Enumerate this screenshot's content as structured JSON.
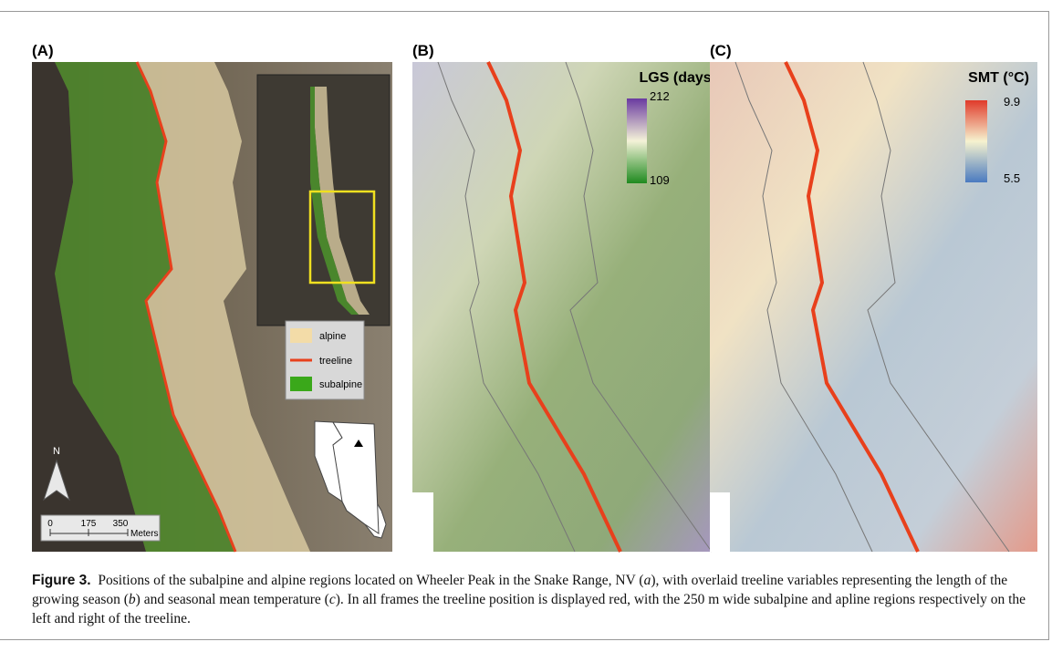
{
  "panels": {
    "a": {
      "label": "(A)",
      "legend": [
        "alpine",
        "treeline",
        "subalpine"
      ],
      "scale": {
        "ticks": [
          0,
          175,
          350
        ],
        "unit": "Meters"
      },
      "north": "N"
    },
    "b": {
      "label": "(B)",
      "colorbar": {
        "title": "LGS (days)",
        "max": 212,
        "min": 109
      }
    },
    "c": {
      "label": "(C)",
      "colorbar": {
        "title": "SMT (°C)",
        "max": 9.9,
        "min": 5.5
      }
    }
  },
  "caption": {
    "label": "Figure 3.",
    "parts": [
      "Positions of the subalpine and alpine regions located on Wheeler Peak in the Snake Range, NV (",
      "a",
      "), with overlaid treeline variables representing the length of the growing season (",
      "b",
      ") and seasonal mean temperature (",
      "c",
      "). In all frames the treeline position is displayed red, with the 250 m wide subalpine and apline regions respectively on the left and right of the treeline."
    ]
  }
}
